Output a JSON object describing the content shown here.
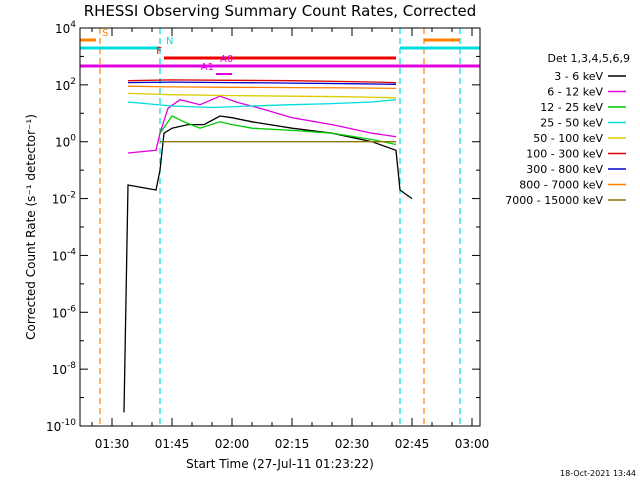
{
  "chart_data": {
    "type": "line",
    "title": "RHESSI Observing Summary Count Rates, Corrected",
    "xlabel": "Start Time (27-Jul-11 01:23:22)",
    "ylabel": "Corrected Count Rate (s⁻¹ detector⁻¹)",
    "y_scale": "log",
    "xlim": [
      "01:22",
      "03:02"
    ],
    "ylim": [
      1e-10,
      10000
    ],
    "x_ticks": [
      "01:30",
      "01:45",
      "02:00",
      "02:15",
      "02:30",
      "02:45",
      "03:00"
    ],
    "y_ticks": [
      {
        "value": 10000,
        "label": "10^4"
      },
      {
        "value": 100,
        "label": "10^2"
      },
      {
        "value": 1,
        "label": "10^0"
      },
      {
        "value": 0.01,
        "label": "10^-2"
      },
      {
        "value": 0.0001,
        "label": "10^-4"
      },
      {
        "value": 1e-06,
        "label": "10^-6"
      },
      {
        "value": 1e-08,
        "label": "10^-8"
      },
      {
        "value": 1e-10,
        "label": "10^-10"
      }
    ],
    "legend_title": "Det 1,3,4,5,6,9",
    "legend_position": "right",
    "series": [
      {
        "name": "3 - 6 keV",
        "color": "#000000",
        "points": [
          [
            "01:33",
            "3e-10"
          ],
          [
            "01:34",
            "0.03"
          ],
          [
            "01:41",
            "0.02"
          ],
          [
            "01:42",
            "0.1"
          ],
          [
            "01:43",
            "2"
          ],
          [
            "01:45",
            "3"
          ],
          [
            "01:49",
            "4"
          ],
          [
            "01:53",
            "4"
          ],
          [
            "01:57",
            "8"
          ],
          [
            "02:00",
            "7"
          ],
          [
            "02:05",
            "5"
          ],
          [
            "02:15",
            "3"
          ],
          [
            "02:25",
            "2"
          ],
          [
            "02:35",
            "1"
          ],
          [
            "02:41",
            "0.5"
          ],
          [
            "02:42",
            "0.02"
          ],
          [
            "02:45",
            "0.01"
          ]
        ]
      },
      {
        "name": "6 - 12 keV",
        "color": "#e000e0",
        "points": [
          [
            "01:34",
            "0.4"
          ],
          [
            "01:41",
            "0.5"
          ],
          [
            "01:42",
            "2"
          ],
          [
            "01:44",
            "15"
          ],
          [
            "01:47",
            "30"
          ],
          [
            "01:52",
            "20"
          ],
          [
            "01:57",
            "40"
          ],
          [
            "02:01",
            "25"
          ],
          [
            "02:07",
            "15"
          ],
          [
            "02:15",
            "7"
          ],
          [
            "02:25",
            "4"
          ],
          [
            "02:35",
            "2"
          ],
          [
            "02:41",
            "1.5"
          ]
        ]
      },
      {
        "name": "12 - 25 keV",
        "color": "#00cc00",
        "points": [
          [
            "01:42",
            "2"
          ],
          [
            "01:45",
            "8"
          ],
          [
            "01:48",
            "5"
          ],
          [
            "01:52",
            "3"
          ],
          [
            "01:57",
            "5"
          ],
          [
            "02:00",
            "4"
          ],
          [
            "02:05",
            "3"
          ],
          [
            "02:15",
            "2.5"
          ],
          [
            "02:25",
            "2"
          ],
          [
            "02:35",
            "1.2"
          ],
          [
            "02:41",
            "0.8"
          ]
        ]
      },
      {
        "name": "25 - 50 keV",
        "color": "#00dddd",
        "points": [
          [
            "01:34",
            "25"
          ],
          [
            "01:45",
            "18"
          ],
          [
            "01:55",
            "16"
          ],
          [
            "02:05",
            "18"
          ],
          [
            "02:15",
            "20"
          ],
          [
            "02:25",
            "22"
          ],
          [
            "02:35",
            "25"
          ],
          [
            "02:41",
            "30"
          ]
        ]
      },
      {
        "name": "50 - 100 keV",
        "color": "#ddcc00",
        "points": [
          [
            "01:34",
            "50"
          ],
          [
            "01:45",
            "45"
          ],
          [
            "02:00",
            "42"
          ],
          [
            "02:15",
            "40"
          ],
          [
            "02:30",
            "38"
          ],
          [
            "02:41",
            "35"
          ]
        ]
      },
      {
        "name": "100 - 300 keV",
        "color": "#dd0000",
        "points": [
          [
            "01:34",
            "140"
          ],
          [
            "01:45",
            "150"
          ],
          [
            "02:00",
            "145"
          ],
          [
            "02:15",
            "140"
          ],
          [
            "02:30",
            "130"
          ],
          [
            "02:41",
            "120"
          ]
        ]
      },
      {
        "name": "300 - 800 keV",
        "color": "#0000cc",
        "points": [
          [
            "01:34",
            "120"
          ],
          [
            "01:45",
            "125"
          ],
          [
            "02:00",
            "120"
          ],
          [
            "02:15",
            "115"
          ],
          [
            "02:30",
            "110"
          ],
          [
            "02:41",
            "105"
          ]
        ]
      },
      {
        "name": "800 - 7000 keV",
        "color": "#ff8000",
        "points": [
          [
            "01:34",
            "90"
          ],
          [
            "01:45",
            "85"
          ],
          [
            "02:00",
            "82"
          ],
          [
            "02:15",
            "80"
          ],
          [
            "02:30",
            "78"
          ],
          [
            "02:41",
            "75"
          ]
        ]
      },
      {
        "name": "7000 - 15000 keV",
        "color": "#887700",
        "points": [
          [
            "01:42",
            "1"
          ],
          [
            "02:00",
            "1"
          ],
          [
            "02:20",
            "1"
          ],
          [
            "02:41",
            "1"
          ]
        ]
      }
    ],
    "flags": [
      {
        "label": "S",
        "color": "#ff8000",
        "ranges": [
          [
            "01:22",
            "01:26"
          ],
          [
            "02:48",
            "02:57"
          ]
        ]
      },
      {
        "label": "N",
        "color": "#00dddd",
        "ranges": [
          [
            "01:22",
            "01:42"
          ],
          [
            "02:42",
            "03:02"
          ]
        ]
      },
      {
        "label": "F",
        "color": "#ee0000",
        "ranges": [
          [
            "01:43",
            "02:41"
          ]
        ]
      },
      {
        "label": "A1",
        "color": "#e000e0",
        "ranges": [
          [
            "01:56",
            "02:00"
          ]
        ]
      },
      {
        "label": "A0",
        "color": "#e000e0",
        "ranges": [
          [
            "01:22",
            "03:02"
          ]
        ]
      }
    ],
    "vlines": [
      {
        "time": "01:27",
        "color": "#ff8000"
      },
      {
        "time": "01:42",
        "color": "#00dddd"
      },
      {
        "time": "02:42",
        "color": "#00dddd"
      },
      {
        "time": "02:48",
        "color": "#ff8000"
      },
      {
        "time": "02:57",
        "color": "#00dddd"
      }
    ]
  },
  "timestamp": "18-Oct-2021 13:44"
}
